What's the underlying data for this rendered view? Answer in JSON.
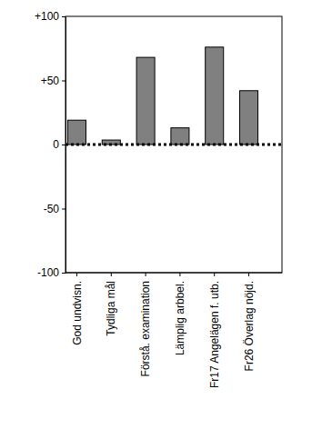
{
  "chart_data": {
    "type": "bar",
    "categories": [
      "God undvisn.",
      "Tydliga mål",
      "Förstå. examination",
      "Lämplig arbbel.",
      "Fr17 Angelägen f. utb.",
      "Fr26 Överlag nöjd."
    ],
    "values": [
      19,
      3.5,
      68,
      13,
      76,
      42
    ],
    "color": "#808080",
    "ylim": [
      -100,
      100
    ],
    "yticks": [
      {
        "value": -100,
        "label": "-100"
      },
      {
        "value": -50,
        "label": "-50"
      },
      0,
      {
        "value": 50,
        "label": "+50"
      },
      {
        "value": 100,
        "label": "+100"
      }
    ],
    "grid": false
  }
}
